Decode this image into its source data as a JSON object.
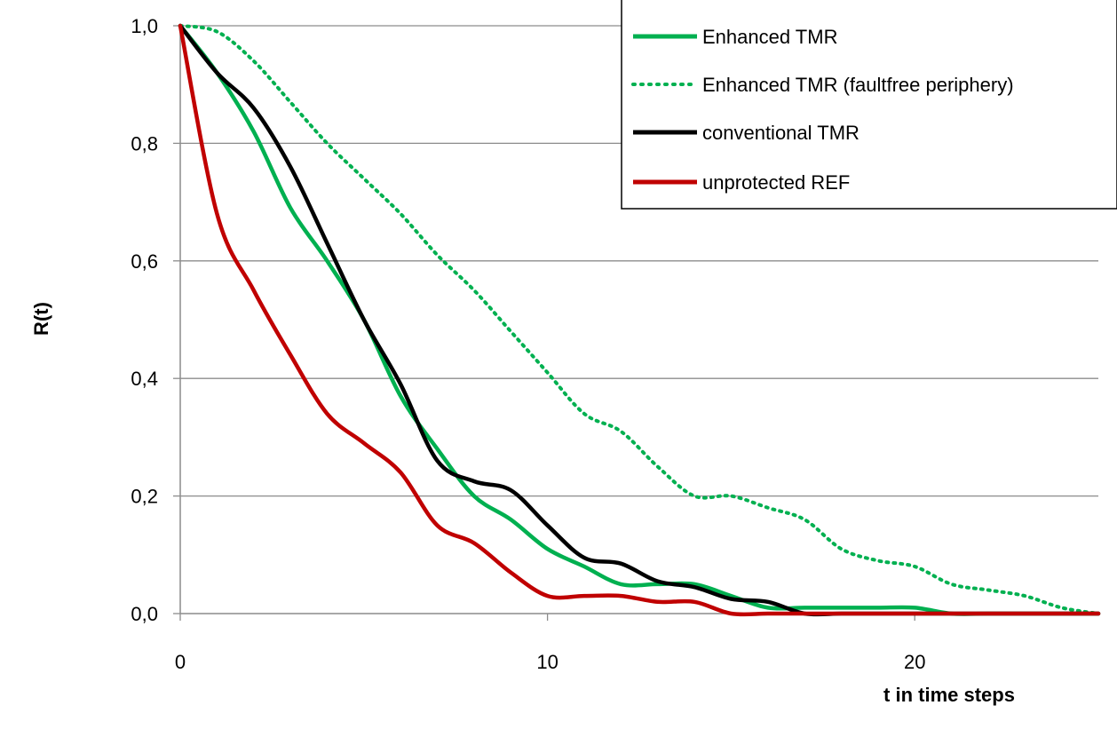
{
  "chart_data": {
    "type": "line",
    "xlabel": "t in time steps",
    "ylabel": "R(t)",
    "xlim": [
      0,
      25
    ],
    "ylim": [
      0,
      1.0
    ],
    "x_ticks": [
      0,
      10,
      20
    ],
    "x_tick_labels": [
      "0",
      "10",
      "20"
    ],
    "y_ticks": [
      0,
      0.2,
      0.4,
      0.6,
      0.8,
      1.0
    ],
    "y_tick_labels": [
      "0,0",
      "0,2",
      "0,4",
      "0,6",
      "0,8",
      "1,0"
    ],
    "grid": "horizontal",
    "legend_position": "top-right",
    "series": [
      {
        "name": "Enhanced TMR",
        "color": "#00b050",
        "style": "solid",
        "x": [
          0,
          1,
          2,
          3,
          4,
          5,
          6,
          7,
          8,
          9,
          10,
          11,
          12,
          13,
          14,
          15,
          16,
          17,
          18,
          19,
          20,
          21,
          22,
          23,
          24,
          25
        ],
        "values": [
          1.0,
          0.92,
          0.82,
          0.69,
          0.6,
          0.5,
          0.37,
          0.28,
          0.2,
          0.16,
          0.11,
          0.08,
          0.05,
          0.05,
          0.05,
          0.03,
          0.01,
          0.01,
          0.01,
          0.01,
          0.01,
          0.0,
          0.0,
          0.0,
          0.0,
          0.0
        ]
      },
      {
        "name": "Enhanced TMR (faultfree periphery)",
        "color": "#00b050",
        "style": "dotted",
        "x": [
          0,
          1,
          2,
          3,
          4,
          5,
          6,
          7,
          8,
          9,
          10,
          11,
          12,
          13,
          14,
          15,
          16,
          17,
          18,
          19,
          20,
          21,
          22,
          23,
          24,
          25
        ],
        "values": [
          1.0,
          0.99,
          0.94,
          0.87,
          0.8,
          0.74,
          0.68,
          0.61,
          0.55,
          0.48,
          0.41,
          0.34,
          0.31,
          0.25,
          0.2,
          0.2,
          0.18,
          0.16,
          0.11,
          0.09,
          0.08,
          0.05,
          0.04,
          0.03,
          0.01,
          0.0
        ]
      },
      {
        "name": "conventional TMR",
        "color": "#000000",
        "style": "solid",
        "x": [
          0,
          1,
          2,
          3,
          4,
          5,
          6,
          7,
          8,
          9,
          10,
          11,
          12,
          13,
          14,
          15,
          16,
          17,
          18,
          19,
          20,
          21,
          22,
          23,
          24,
          25
        ],
        "values": [
          1.0,
          0.92,
          0.86,
          0.76,
          0.63,
          0.5,
          0.39,
          0.26,
          0.225,
          0.21,
          0.15,
          0.095,
          0.085,
          0.055,
          0.045,
          0.025,
          0.02,
          0.0,
          0.0,
          0.0,
          0.0,
          0.0,
          0.0,
          0.0,
          0.0,
          0.0
        ]
      },
      {
        "name": "unprotected REF",
        "color": "#c00000",
        "style": "solid",
        "x": [
          0,
          1,
          2,
          3,
          4,
          5,
          6,
          7,
          8,
          9,
          10,
          11,
          12,
          13,
          14,
          15,
          16,
          17,
          18,
          19,
          20,
          21,
          22,
          23,
          24,
          25
        ],
        "values": [
          1.0,
          0.68,
          0.55,
          0.44,
          0.34,
          0.29,
          0.24,
          0.15,
          0.12,
          0.07,
          0.03,
          0.03,
          0.03,
          0.02,
          0.02,
          0.0,
          0.0,
          0.0,
          0.0,
          0.0,
          0.0,
          0.0,
          0.0,
          0.0,
          0.0,
          0.0
        ]
      }
    ]
  }
}
